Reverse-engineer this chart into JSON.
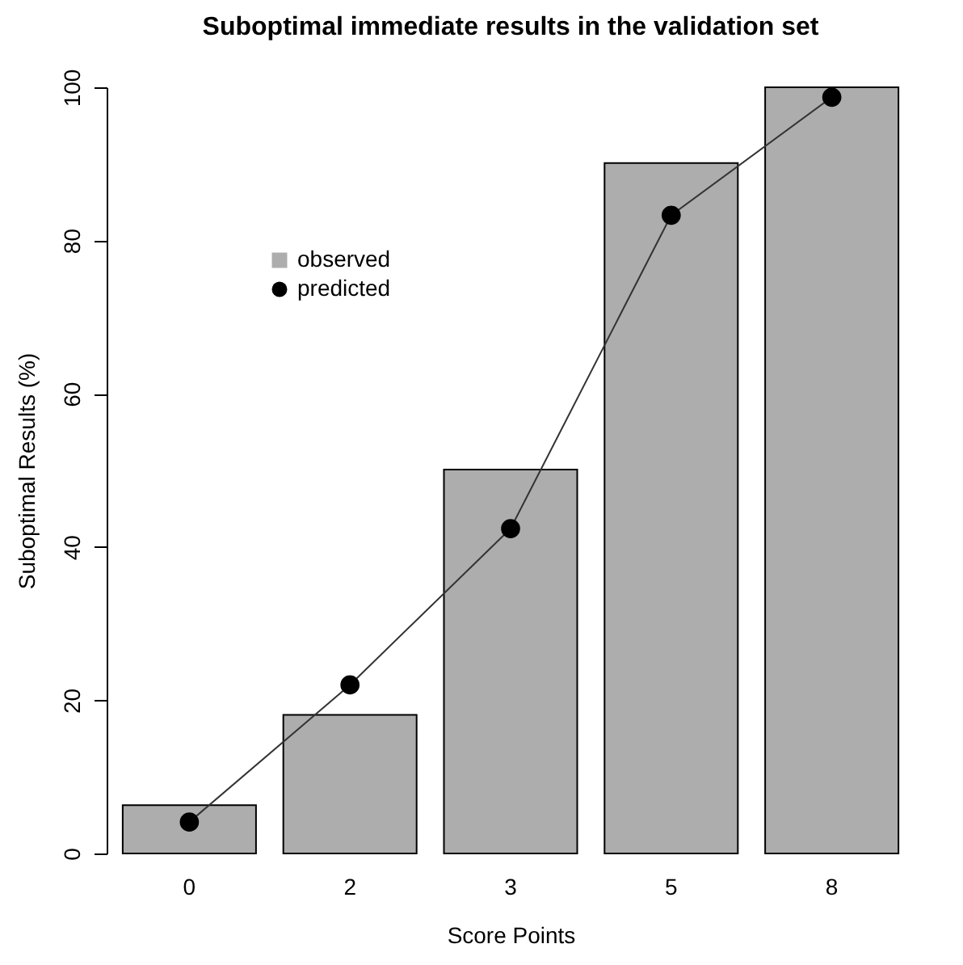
{
  "chart_data": {
    "type": "bar",
    "title": "Suboptimal immediate results in the validation set",
    "xlabel": "Score Points",
    "ylabel": "Suboptimal Results (%)",
    "categories": [
      "0",
      "2",
      "3",
      "5",
      "8"
    ],
    "series": [
      {
        "name": "observed",
        "type": "bar",
        "color": "#adadad",
        "values": [
          6.3,
          18.1,
          50.1,
          90.1,
          100
        ]
      },
      {
        "name": "predicted",
        "type": "line",
        "marker": "circle",
        "color": "#000000",
        "values": [
          4.1,
          22.0,
          42.4,
          83.3,
          98.7
        ]
      }
    ],
    "ylim": [
      0,
      100
    ],
    "yticks": [
      0,
      20,
      40,
      60,
      80,
      100
    ],
    "legend": "top left"
  }
}
